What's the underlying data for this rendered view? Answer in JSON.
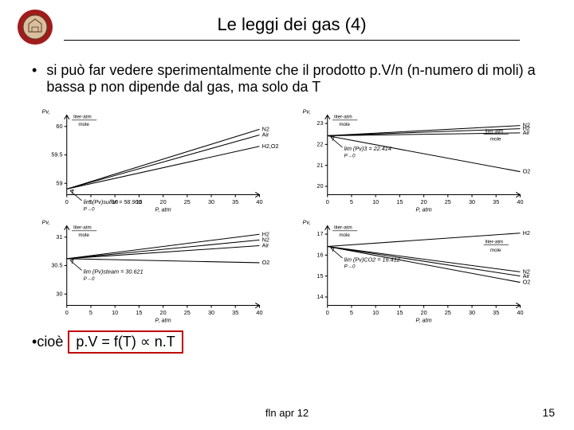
{
  "header": {
    "title": "Le leggi dei gas (4)",
    "logo": {
      "outer_color": "#a01c1c",
      "inner_color": "#d9bfa0",
      "name": "university-seal-icon"
    }
  },
  "bullets": {
    "first": "si può far vedere sperimentalmente che il prodotto p.V/n (n-numero di moli) a bassa p non dipende dal gas, ma solo da T",
    "second_prefix": "cioè",
    "second_boxed": "p.V = f(T) ∝ n.T"
  },
  "charts": {
    "stroke": "#000000",
    "bg": "#ffffff",
    "font_size": 7,
    "axis_width": 1,
    "line_width": 1,
    "x_label": "P, atm",
    "y_label": "Pv,",
    "y_unit": "liter-atm\nmole",
    "x_ticks": [
      0,
      5,
      10,
      15,
      20,
      25,
      30,
      35,
      40
    ],
    "panels": [
      {
        "id": "sulfur",
        "y_ticks": [
          59.0,
          59.5,
          60.0
        ],
        "ylim": [
          58.8,
          60.2
        ],
        "limit_text": "lim (Pv)sulfur = 58.900",
        "series": [
          {
            "name": "N2",
            "y0": 58.9,
            "y40": 59.95
          },
          {
            "name": "Air",
            "y0": 58.9,
            "y40": 59.85
          },
          {
            "name": "H2,O2",
            "y0": 58.9,
            "y40": 59.65
          }
        ]
      },
      {
        "id": "gas3",
        "y_ticks": [
          20,
          21,
          22,
          23
        ],
        "ylim": [
          19.6,
          23.4
        ],
        "limit_text": "lim (Pv)3 = 22.414",
        "limit_arrow_y": 22.414,
        "series": [
          {
            "name": "N2",
            "y0": 22.414,
            "y40": 22.9
          },
          {
            "name": "H2",
            "y0": 22.414,
            "y40": 22.75
          },
          {
            "name": "Air",
            "y0": 22.414,
            "y40": 22.55
          },
          {
            "name": "O2",
            "y0": 22.414,
            "y40": 20.7
          }
        ]
      },
      {
        "id": "steam",
        "y_ticks": [
          30.0,
          30.5,
          31.0
        ],
        "ylim": [
          29.8,
          31.2
        ],
        "limit_text": "lim (Pv)steam = 30.621",
        "series": [
          {
            "name": "H2",
            "y0": 30.621,
            "y40": 31.05
          },
          {
            "name": "N2",
            "y0": 30.621,
            "y40": 30.95
          },
          {
            "name": "Air",
            "y0": 30.621,
            "y40": 30.85
          },
          {
            "name": "O2",
            "y0": 30.621,
            "y40": 30.55
          }
        ]
      },
      {
        "id": "CO2",
        "y_ticks": [
          14,
          15,
          16,
          17
        ],
        "ylim": [
          13.6,
          17.4
        ],
        "limit_text": "lim (Pv)CO2 = 16.412",
        "limit_arrow_y": 16.412,
        "series": [
          {
            "name": "H2",
            "y0": 16.412,
            "y40": 17.05
          },
          {
            "name": "N2",
            "y0": 16.412,
            "y40": 15.2
          },
          {
            "name": "Air",
            "y0": 16.412,
            "y40": 15.0
          },
          {
            "name": "O2",
            "y0": 16.412,
            "y40": 14.7
          }
        ]
      }
    ]
  },
  "footer": {
    "center": "fln apr 12",
    "page": "15"
  },
  "boxed_border_color": "#c00000"
}
